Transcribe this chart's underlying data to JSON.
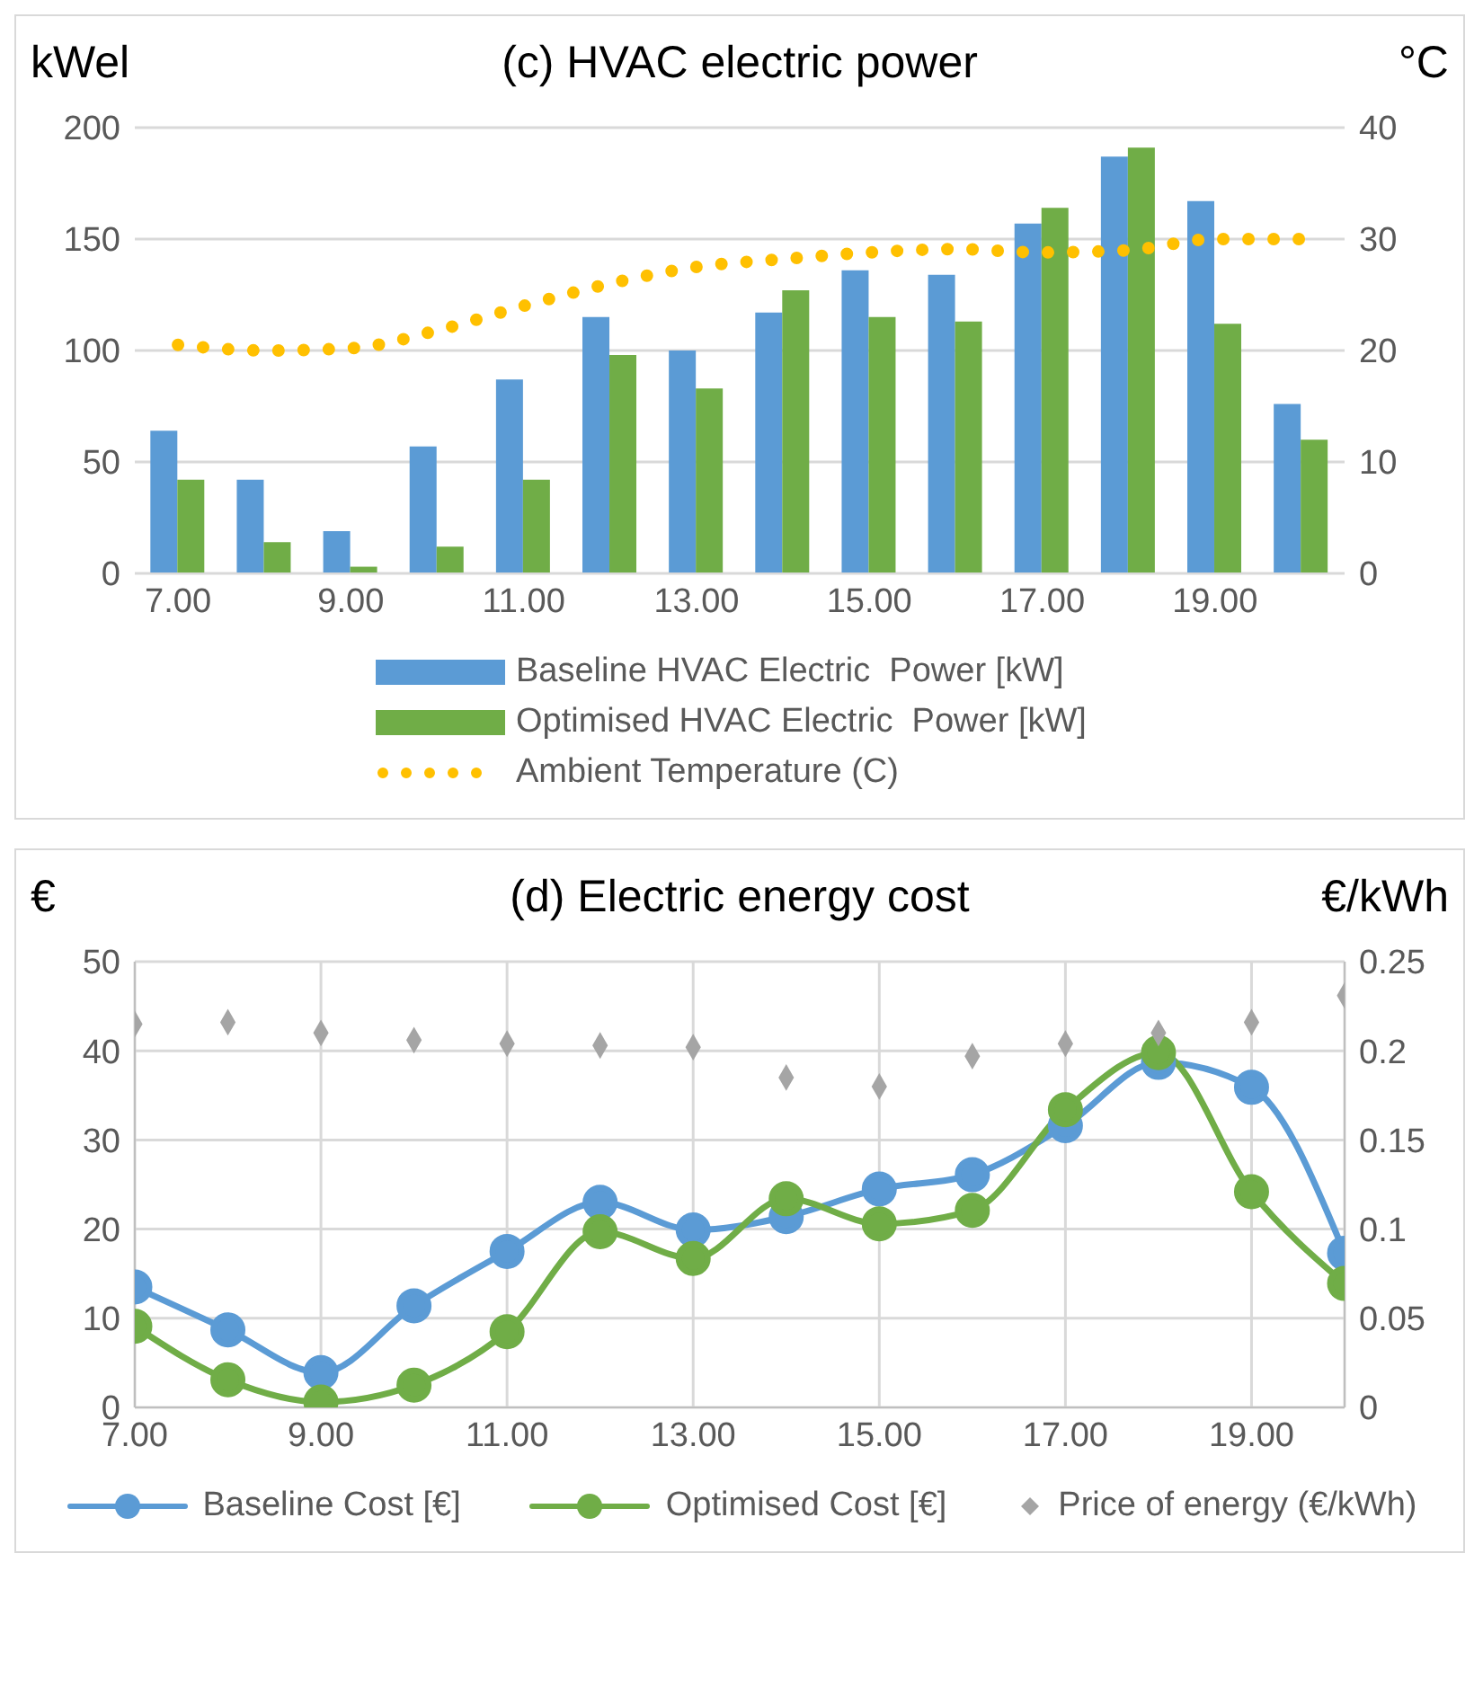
{
  "chart_data": [
    {
      "type": "bar",
      "title": "(c) HVAC electric power",
      "ylabel": "kWel",
      "y2label": "°C",
      "categories": [
        "7.00",
        null,
        "9.00",
        null,
        "11.00",
        null,
        "13.00",
        null,
        "15.00",
        null,
        "17.00",
        null,
        "19.00",
        null
      ],
      "series": [
        {
          "name": "Baseline HVAC Electric  Power [kW]",
          "color": "#5b9bd5",
          "values": [
            64,
            42,
            19,
            57,
            87,
            115,
            100,
            117,
            136,
            134,
            157,
            187,
            167,
            76
          ]
        },
        {
          "name": "Optimised HVAC Electric  Power [kW]",
          "color": "#70ad47",
          "values": [
            42,
            14,
            3,
            12,
            42,
            98,
            83,
            127,
            115,
            113,
            164,
            191,
            112,
            60
          ]
        },
        {
          "name": "Ambient Temperature (C)",
          "type": "line",
          "axis": "y2",
          "color": "#ffc000",
          "line_style": "dotted",
          "marker": "none",
          "values": [
            20.5,
            20,
            20.2,
            21.8,
            24,
            26,
            27.5,
            28.2,
            28.8,
            29.1,
            28.8,
            29,
            30,
            30
          ]
        }
      ],
      "ylim": [
        0,
        200
      ],
      "yticks": [
        0,
        50,
        100,
        150,
        200
      ],
      "y2lim": [
        0,
        40
      ],
      "y2ticks": [
        0,
        10,
        20,
        30,
        40
      ],
      "grid": "y",
      "legend": "bottom"
    },
    {
      "type": "line",
      "title": "(d) Electric energy cost",
      "ylabel": "€",
      "y2label": "€/kWh",
      "x": [
        7,
        8,
        9,
        10,
        11,
        12,
        13,
        14,
        15,
        16,
        17,
        18,
        19,
        20
      ],
      "xlim": [
        7,
        20
      ],
      "xticks": [
        {
          "value": 7,
          "label": "7.00"
        },
        {
          "value": 9,
          "label": "9.00"
        },
        {
          "value": 11,
          "label": "11.00"
        },
        {
          "value": 13,
          "label": "13.00"
        },
        {
          "value": 15,
          "label": "15.00"
        },
        {
          "value": 17,
          "label": "17.00"
        },
        {
          "value": 19,
          "label": "19.00"
        }
      ],
      "series": [
        {
          "name": "Baseline Cost [€]",
          "color": "#5b9bd5",
          "marker": "circle",
          "values": [
            13.5,
            8.7,
            3.9,
            11.4,
            17.5,
            23,
            19.9,
            21.4,
            24.5,
            26.1,
            31.6,
            38.7,
            35.9,
            17.3
          ]
        },
        {
          "name": "Optimised Cost [€]",
          "color": "#70ad47",
          "marker": "circle",
          "values": [
            9.1,
            3.1,
            0.6,
            2.5,
            8.5,
            19.7,
            16.7,
            23.4,
            20.6,
            22.1,
            33.4,
            39.8,
            24.2,
            13.9
          ]
        },
        {
          "name": "Price of energy (€/kWh)",
          "type": "scatter",
          "axis": "y2",
          "color": "#a5a5a5",
          "marker": "diamond",
          "values": [
            0.215,
            0.216,
            0.21,
            0.206,
            0.204,
            0.203,
            0.202,
            0.185,
            0.18,
            0.197,
            0.204,
            0.21,
            0.216,
            0.231
          ]
        }
      ],
      "ylim": [
        0,
        50
      ],
      "yticks": [
        0,
        10,
        20,
        30,
        40,
        50
      ],
      "y2lim": [
        0,
        0.25
      ],
      "y2ticks": [
        0,
        0.05,
        0.1,
        0.15,
        0.2,
        0.25
      ],
      "grid": true,
      "legend": "bottom"
    }
  ]
}
